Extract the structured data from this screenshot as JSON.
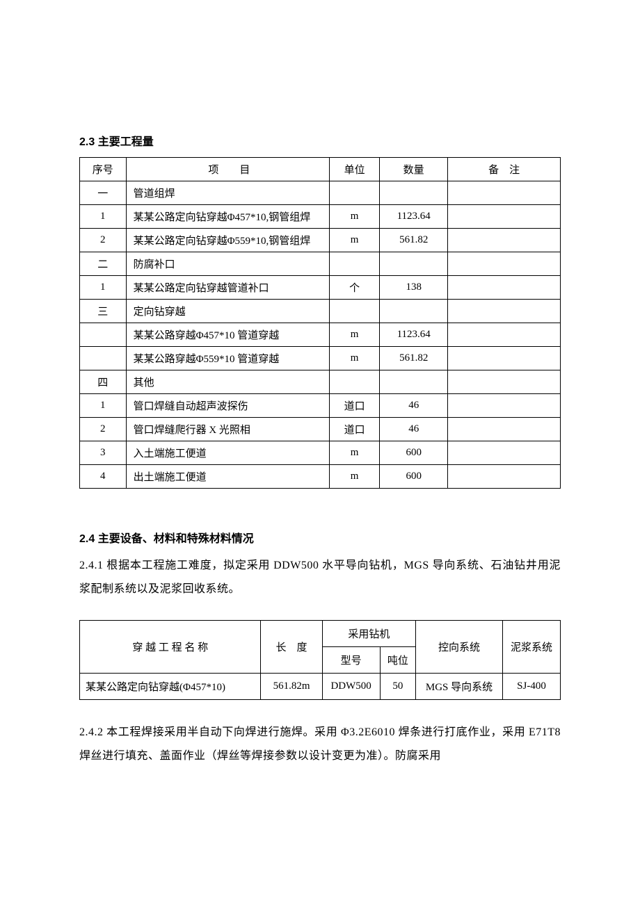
{
  "section23": {
    "heading": "2.3 主要工程量",
    "header": {
      "seq": "序号",
      "item": "项　　目",
      "unit": "单位",
      "qty": "数量",
      "note": "备　注"
    },
    "rows": [
      {
        "seq": "一",
        "item": "管道组焊",
        "unit": "",
        "qty": "",
        "note": ""
      },
      {
        "seq": "1",
        "item": "某某公路定向钻穿越Φ457*10,钢管组焊",
        "unit": "m",
        "qty": "1123.64",
        "note": ""
      },
      {
        "seq": "2",
        "item": "某某公路定向钻穿越Φ559*10,钢管组焊",
        "unit": "m",
        "qty": "561.82",
        "note": ""
      },
      {
        "seq": "二",
        "item": "防腐补口",
        "unit": "",
        "qty": "",
        "note": ""
      },
      {
        "seq": "1",
        "item": "某某公路定向钻穿越管道补口",
        "unit": "个",
        "qty": "138",
        "note": ""
      },
      {
        "seq": "三",
        "item": "定向钻穿越",
        "unit": "",
        "qty": "",
        "note": ""
      },
      {
        "seq": "",
        "item": "某某公路穿越Φ457*10 管道穿越",
        "unit": "m",
        "qty": "1123.64",
        "note": ""
      },
      {
        "seq": "",
        "item": "某某公路穿越Φ559*10 管道穿越",
        "unit": "m",
        "qty": "561.82",
        "note": ""
      },
      {
        "seq": "四",
        "item": "其他",
        "unit": "",
        "qty": "",
        "note": ""
      },
      {
        "seq": "1",
        "item": "管口焊缝自动超声波探伤",
        "unit": "道口",
        "qty": "46",
        "note": ""
      },
      {
        "seq": "2",
        "item": "管口焊缝爬行器 X 光照相",
        "unit": "道口",
        "qty": "46",
        "note": ""
      },
      {
        "seq": "3",
        "item": "入土端施工便道",
        "unit": "m",
        "qty": "600",
        "note": ""
      },
      {
        "seq": "4",
        "item": "出土端施工便道",
        "unit": "m",
        "qty": "600",
        "note": ""
      }
    ]
  },
  "section24": {
    "heading": "2.4 主要设备、材料和特殊材料情况",
    "p1": "2.4.1 根据本工程施工难度，拟定采用 DDW500 水平导向钻机，MGS 导向系统、石油钻井用泥浆配制系统以及泥浆回收系统。",
    "t2header": {
      "name": "穿 越 工 程 名 称",
      "length": "长　度",
      "drill": "采用钻机",
      "model": "型号",
      "ton": "吨位",
      "ctrl": "控向系统",
      "mud": "泥浆系统"
    },
    "t2row": {
      "name": "某某公路定向钻穿越(Φ457*10)",
      "length": "561.82m",
      "model": "DDW500",
      "ton": "50",
      "ctrl": "MGS 导向系统",
      "mud": "SJ-400"
    },
    "p2": "2.4.2 本工程焊接采用半自动下向焊进行施焊。采用 Φ3.2E6010 焊条进行打底作业，采用 E71T8 焊丝进行填充、盖面作业（焊丝等焊接参数以设计变更为准）。防腐采用"
  }
}
